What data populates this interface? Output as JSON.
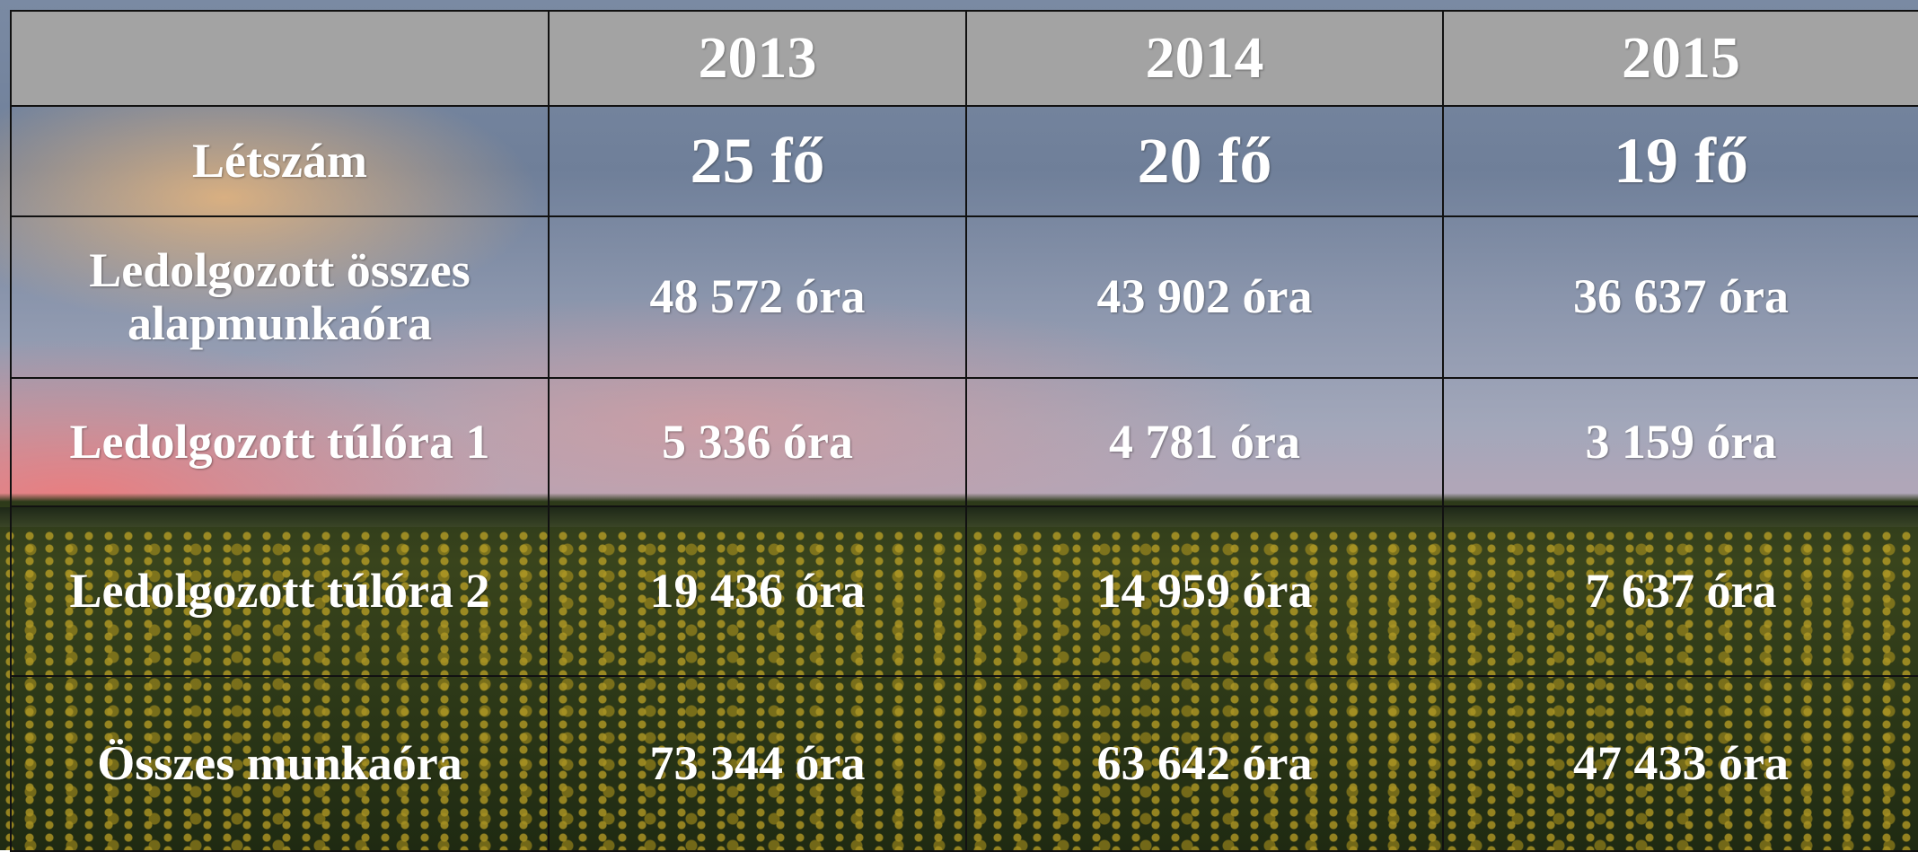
{
  "table": {
    "years": [
      "2013",
      "2014",
      "2015"
    ],
    "rows": [
      {
        "label": "Létszám",
        "cells": [
          "25 fő",
          "20 fő",
          "19 fő"
        ]
      },
      {
        "label": "Ledolgozott összes alapmunkaóra",
        "cells": [
          "48 572 óra",
          "43 902 óra",
          "36 637 óra"
        ]
      },
      {
        "label": "Ledolgozott túlóra 1",
        "cells": [
          "5 336 óra",
          "4 781 óra",
          "3 159 óra"
        ]
      },
      {
        "label": "Ledolgozott túlóra 2",
        "cells": [
          "19 436 óra",
          "14 959 óra",
          "7 637 óra"
        ]
      },
      {
        "label": "Összes munkaóra",
        "cells": [
          "73 344 óra",
          "63 642 óra",
          "47 433 óra"
        ]
      }
    ]
  }
}
